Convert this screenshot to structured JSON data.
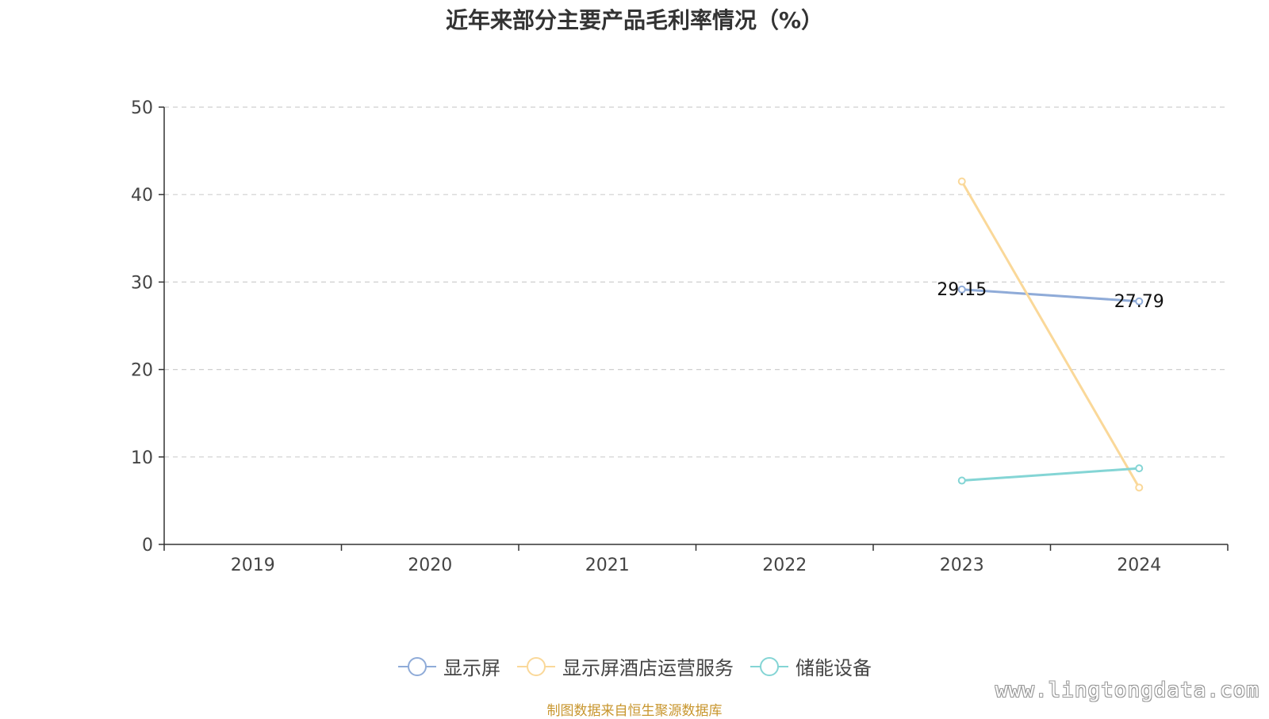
{
  "chart_data": {
    "type": "line",
    "title": "近年来部分主要产品毛利率情况（%）",
    "categories": [
      "2019",
      "2020",
      "2021",
      "2022",
      "2023",
      "2024"
    ],
    "ylim": [
      0,
      50
    ],
    "yticks": [
      0,
      10,
      20,
      30,
      40,
      50
    ],
    "grid": true,
    "legend_position": "bottom",
    "series": [
      {
        "name": "显示屏",
        "color": "#8fabd8",
        "values": [
          null,
          null,
          null,
          null,
          29.15,
          27.79
        ],
        "labels": [
          null,
          null,
          null,
          null,
          "29.15",
          "27.79"
        ]
      },
      {
        "name": "显示屏酒店运营服务",
        "color": "#fad899",
        "values": [
          null,
          null,
          null,
          null,
          41.5,
          6.5
        ],
        "labels": null
      },
      {
        "name": "储能设备",
        "color": "#84d5d5",
        "values": [
          null,
          null,
          null,
          null,
          7.3,
          8.7
        ],
        "labels": null
      }
    ]
  },
  "footer": {
    "source": "制图数据来自恒生聚源数据库",
    "watermark": "www.lingtongdata.com"
  }
}
